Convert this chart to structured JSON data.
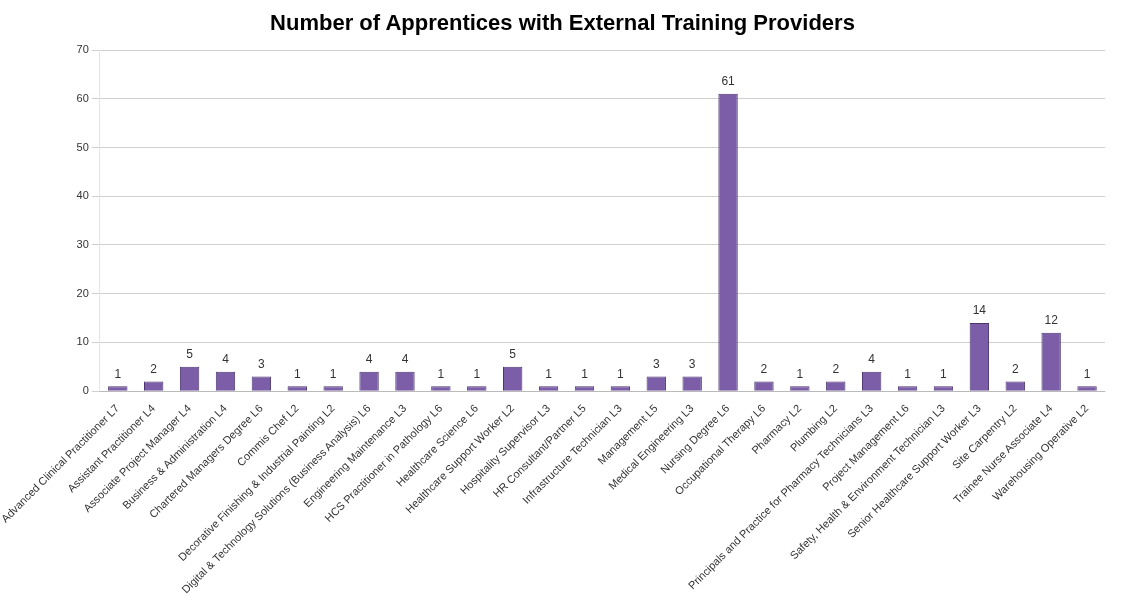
{
  "chart_data": {
    "type": "bar",
    "title": "Number of Apprentices with External Training Providers",
    "categories": [
      "Advanced Clinical Practitioner L7",
      "Assistant Practitioner L4",
      "Associate Project Manager L4",
      "Business & Administration L4",
      "Chartered Managers Degree L6",
      "Commis Chef L2",
      "Decorative Finishing & Industrial Painting L2",
      "Digital & Technology Solutions (Business Analysis) L6",
      "Engineering Maintenance L3",
      "HCS Practitioner in Pathology L6",
      "Healthcare Science L6",
      "Healthcare Support Worker L2",
      "Hospitality Supervisor L3",
      "HR Consultant/Partner L5",
      "Infrastructure Technician L3",
      "Management L5",
      "Medical Engineering L3",
      "Nursing Degree L6",
      "Occupational Therapy L6",
      "Pharmacy L2",
      "Plumbing L2",
      "Principals and Practice for Pharmacy Technicians L3",
      "Project Management L6",
      "Safety, Health & Environment Technician L3",
      "Senior Healthcare Support Worker L3",
      "Site Carpentry L2",
      "Trainee Nurse Associate L4",
      "Warehousing Operative L2"
    ],
    "values": [
      1,
      2,
      5,
      4,
      3,
      1,
      1,
      4,
      4,
      1,
      1,
      5,
      1,
      1,
      1,
      3,
      3,
      61,
      2,
      1,
      2,
      4,
      1,
      1,
      14,
      2,
      12,
      1
    ],
    "color": "#7b5ea7",
    "ylim": [
      0,
      70
    ],
    "yticks": [
      0,
      10,
      20,
      30,
      40,
      50,
      60,
      70
    ],
    "grid": "y",
    "data_labels": true,
    "legend": false
  }
}
